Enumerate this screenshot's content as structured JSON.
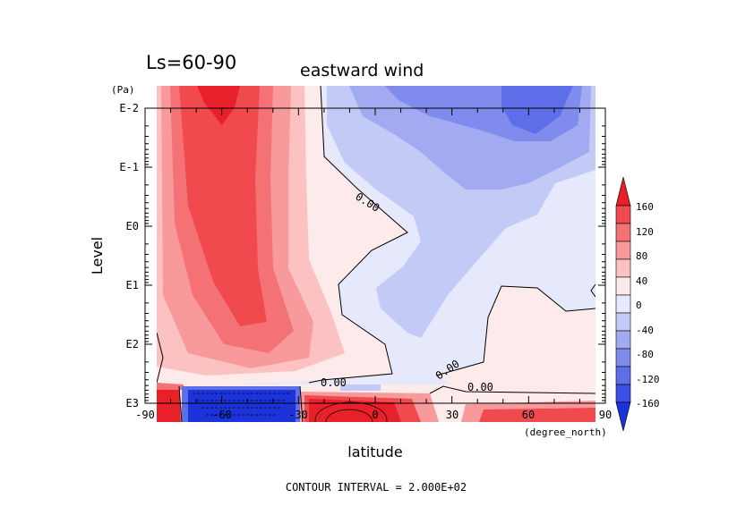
{
  "chart_data": {
    "type": "heatmap",
    "subtitle": "Ls=60-90",
    "title": "eastward wind",
    "xlabel": "latitude",
    "ylabel": "Level",
    "x_unit": "(degree_north)",
    "y_unit": "(Pa)",
    "footer": "CONTOUR INTERVAL = 2.000E+02",
    "xlim": [
      -90,
      90
    ],
    "ylim": [
      "E3",
      "E-2"
    ],
    "x_ticks": [
      "-90",
      "-60",
      "-30",
      "0",
      "30",
      "60",
      "90"
    ],
    "y_ticks": [
      "E-2",
      "E-1",
      "E0",
      "E1",
      "E2",
      "E3"
    ],
    "colorbar": {
      "labels": [
        "160",
        "120",
        "80",
        "40",
        "0",
        "-40",
        "-80",
        "-120",
        "-160"
      ],
      "colors": [
        "#e8202a",
        "#f04a4e",
        "#f47276",
        "#f89a9c",
        "#fcc2c2",
        "#fdeaea",
        "#e6e9fb",
        "#c4caf6",
        "#a2abf1",
        "#808ced",
        "#5e6de8",
        "#3c4ee4",
        "#1c33dc"
      ]
    },
    "contour_labels": [
      "0.00",
      "0.00",
      "0.00",
      "0.00"
    ]
  }
}
